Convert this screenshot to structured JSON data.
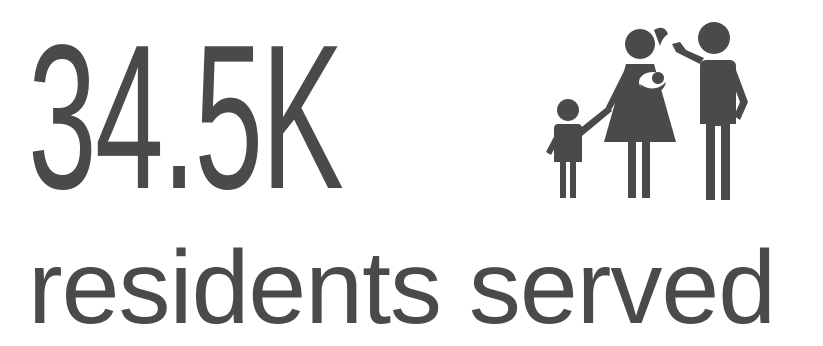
{
  "stat": {
    "value": "34.5K",
    "label": "residents served",
    "icon": "family-icon"
  },
  "colors": {
    "text": "#4a4a4a",
    "icon": "#4a4a4a",
    "background": "#ffffff"
  }
}
